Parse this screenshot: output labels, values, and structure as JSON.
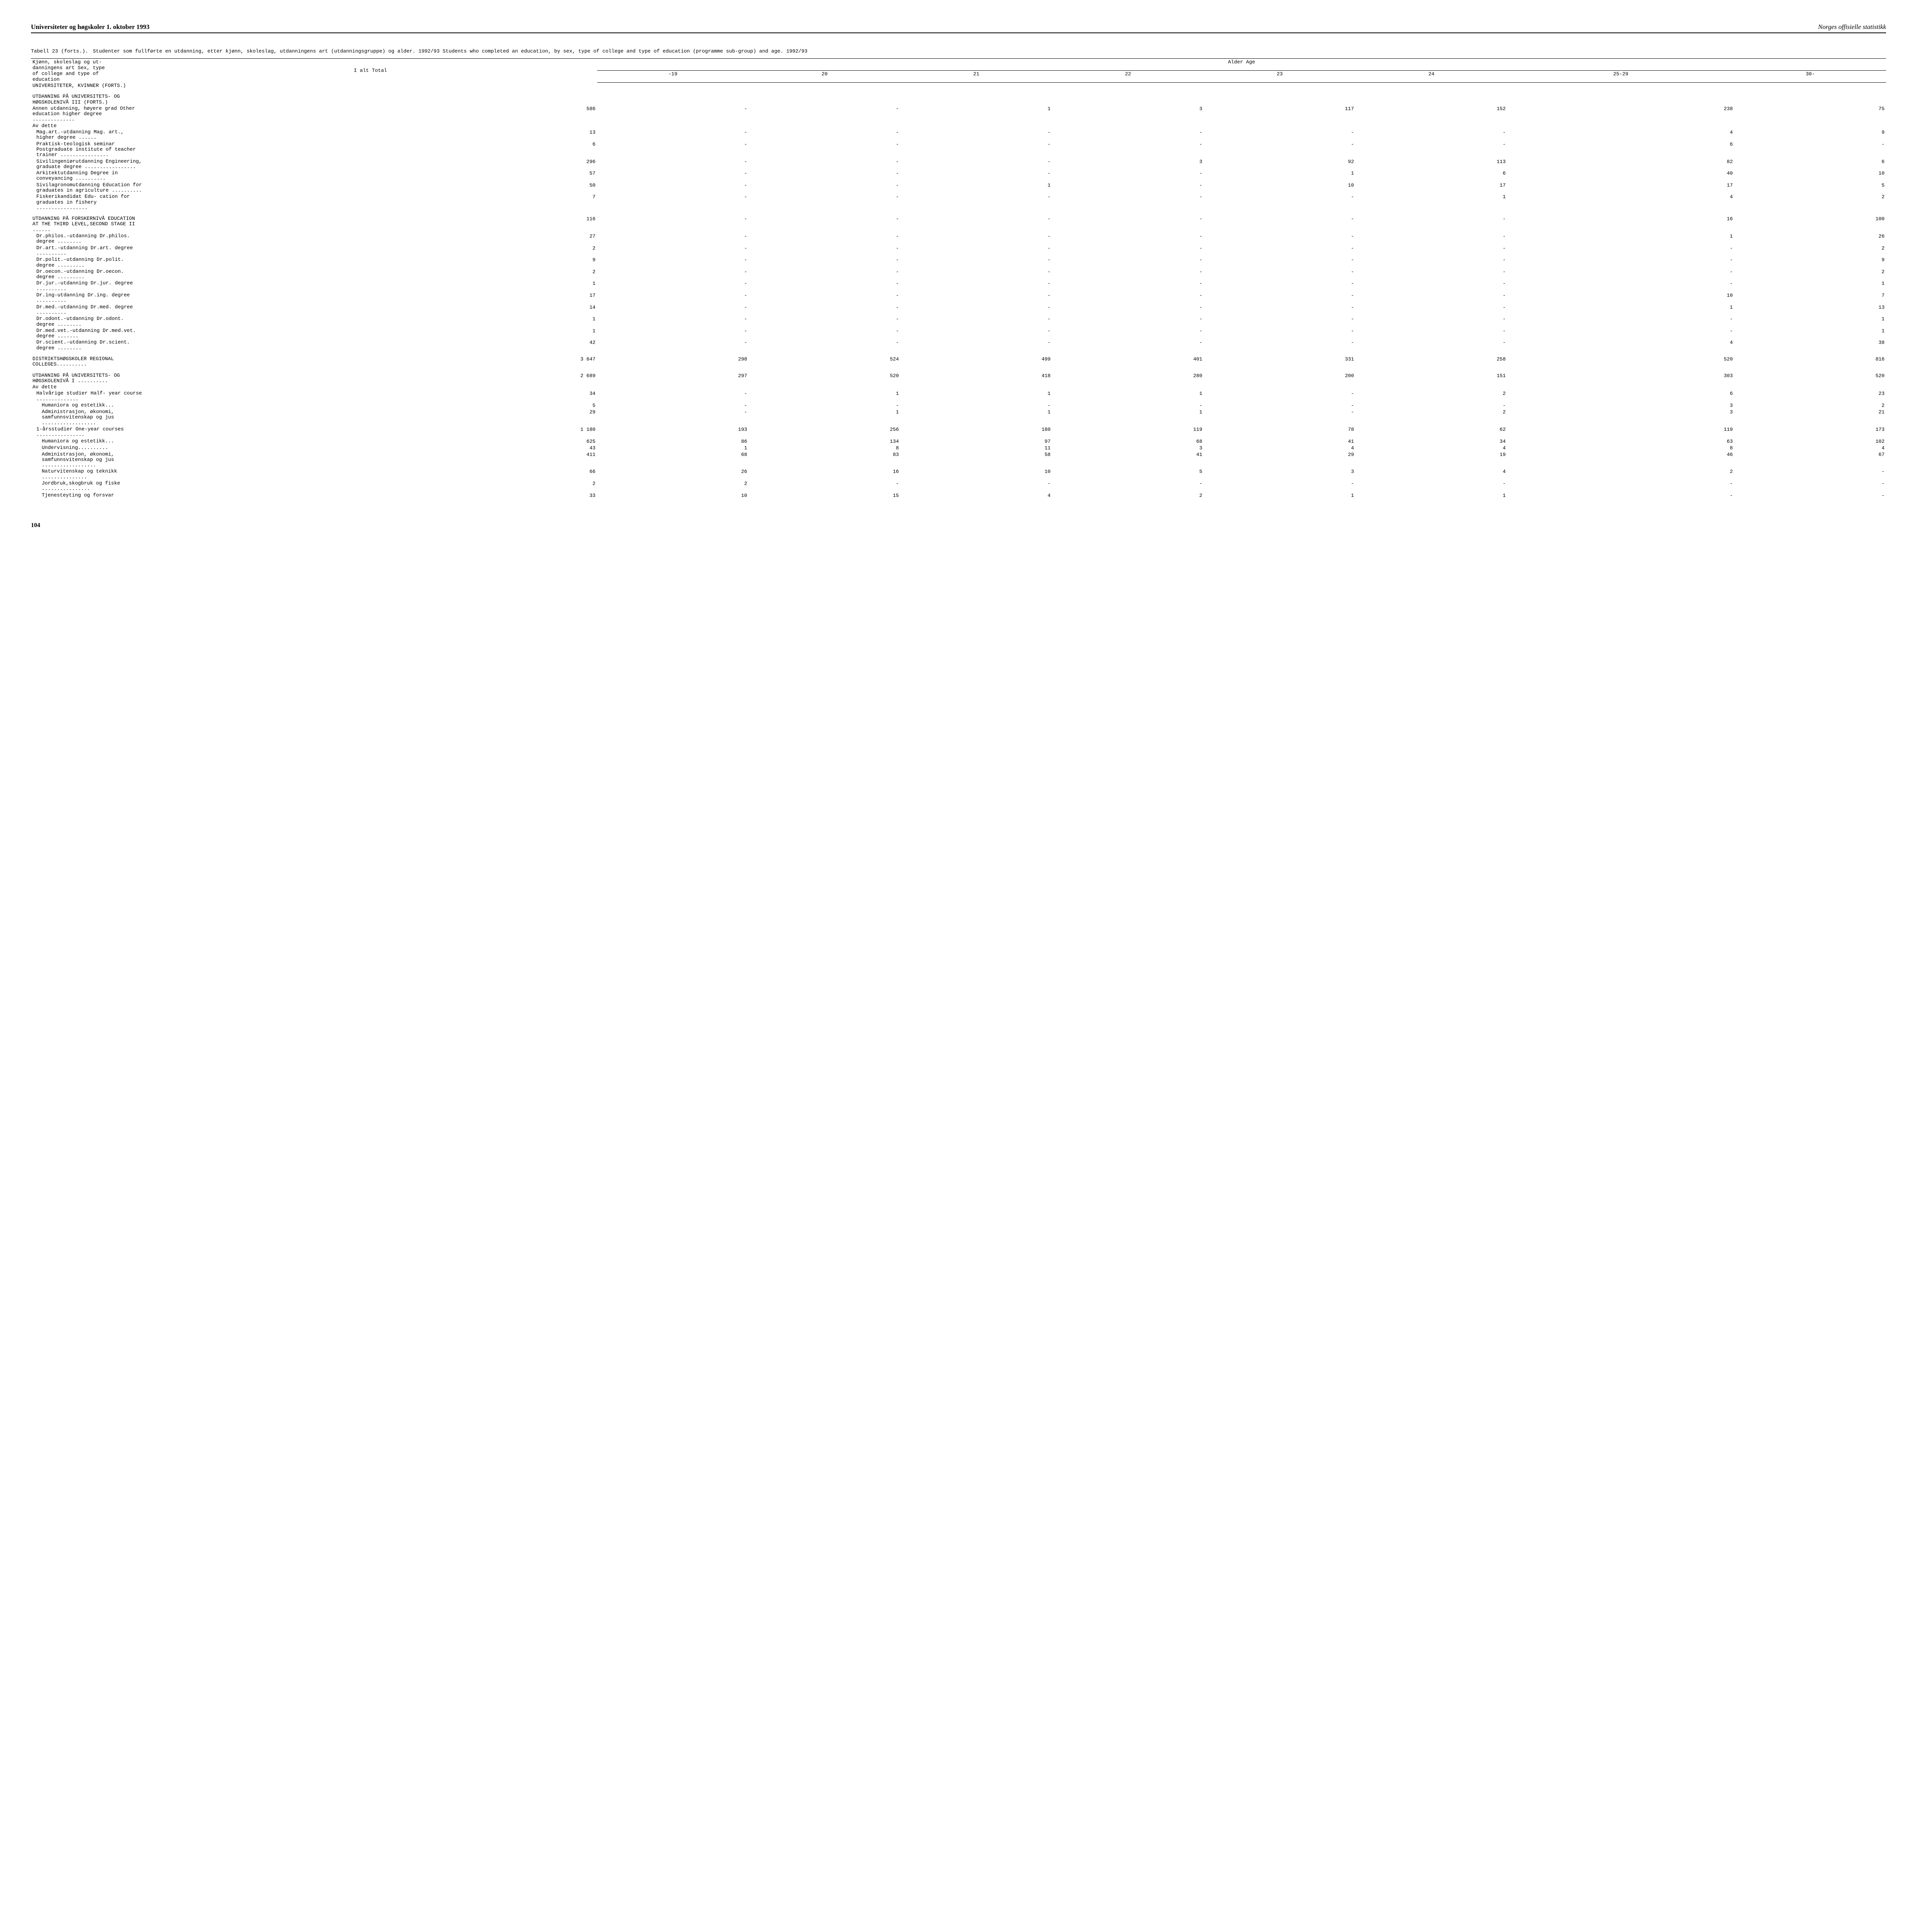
{
  "header": {
    "left": "Universiteter og høgskoler 1. oktober 1993",
    "right": "Norges offisielle statistikk"
  },
  "table": {
    "title_label": "Tabell 23 (forts.).",
    "title_text": "Studenter som fullførte en utdanning, etter kjønn, skoleslag, utdanningens art (utdanningsgruppe) og alder. 1992/93  Students who completed an education, by sex, type of college and type of education (programme sub-group) and age. 1992/93",
    "stub_lines": [
      "Kjønn, skoleslag og ut-",
      "danningens art  Sex, type",
      "of college and type of",
      "education"
    ],
    "total_label": "I alt Total",
    "age_label": "Alder  Age",
    "age_cols": [
      "-19",
      "20",
      "21",
      "22",
      "23",
      "24",
      "25-29",
      "30-"
    ]
  },
  "rows": [
    {
      "label": "UNIVERSITETER, KVINNER (FORTS.)",
      "indent": 0,
      "vals": [
        null,
        null,
        null,
        null,
        null,
        null,
        null,
        null,
        null
      ]
    },
    {
      "gap": true
    },
    {
      "label": "UTDANNING PÅ UNIVERSITETS- OG HØGSKOLENIVÅ III (FORTS.)",
      "indent": 0,
      "vals": [
        null,
        null,
        null,
        null,
        null,
        null,
        null,
        null,
        null
      ]
    },
    {
      "label": "Annen utdanning, høyere grad  Other education higher degree ..............",
      "indent": 0,
      "vals": [
        "586",
        "-",
        "-",
        "1",
        "3",
        "117",
        "152",
        "238",
        "75"
      ]
    },
    {
      "label": "Av dette",
      "indent": 0,
      "vals": [
        null,
        null,
        null,
        null,
        null,
        null,
        null,
        null,
        null
      ]
    },
    {
      "label": "Mag.art.-utdanning  Mag. art., higher degree ......",
      "indent": 1,
      "vals": [
        "13",
        "-",
        "-",
        "-",
        "-",
        "-",
        "-",
        "4",
        "9"
      ]
    },
    {
      "label": "Praktisk-teologisk seminar  Postgraduate institute of teacher trainer ................",
      "indent": 1,
      "vals": [
        "6",
        "-",
        "-",
        "-",
        "-",
        "-",
        "-",
        "6",
        "-"
      ]
    },
    {
      "label": "Sivilingeniørutdanning Engineering, graduate degree .................",
      "indent": 1,
      "vals": [
        "296",
        "-",
        "-",
        "-",
        "3",
        "92",
        "113",
        "82",
        "6"
      ]
    },
    {
      "label": "Arkitektutdanning  Degree in conveyancing ..........",
      "indent": 1,
      "vals": [
        "57",
        "-",
        "-",
        "-",
        "-",
        "1",
        "6",
        "40",
        "10"
      ]
    },
    {
      "label": "Sivilagronomutdanning Education for graduates in agriculture ..........",
      "indent": 1,
      "vals": [
        "50",
        "-",
        "-",
        "1",
        "-",
        "10",
        "17",
        "17",
        "5"
      ]
    },
    {
      "label": "Fiskerikandidat  Edu- cation for graduates in fishery .................",
      "indent": 1,
      "vals": [
        "7",
        "-",
        "-",
        "-",
        "-",
        "-",
        "1",
        "4",
        "2"
      ]
    },
    {
      "gap": true
    },
    {
      "label": "UTDANNING PÅ FORSKERNIVÅ EDUCATION AT THE THIRD LEVEL,SECOND STAGE II ......",
      "indent": 0,
      "vals": [
        "116",
        "-",
        "-",
        "-",
        "-",
        "-",
        "-",
        "16",
        "100"
      ]
    },
    {
      "label": "Dr.philos.-utdanning Dr.philos. degree ........",
      "indent": 1,
      "vals": [
        "27",
        "-",
        "-",
        "-",
        "-",
        "-",
        "-",
        "1",
        "26"
      ]
    },
    {
      "label": "Dr.art.-utdanning Dr.art. degree ..........",
      "indent": 1,
      "vals": [
        "2",
        "-",
        "-",
        "-",
        "-",
        "-",
        "-",
        "-",
        "2"
      ]
    },
    {
      "label": "Dr.polit.-utdanning Dr.polit. degree .........",
      "indent": 1,
      "vals": [
        "9",
        "-",
        "-",
        "-",
        "-",
        "-",
        "-",
        "-",
        "9"
      ]
    },
    {
      "label": "Dr.oecon.-utdanning Dr.oecon. degree .........",
      "indent": 1,
      "vals": [
        "2",
        "-",
        "-",
        "-",
        "-",
        "-",
        "-",
        "-",
        "2"
      ]
    },
    {
      "label": "Dr.jur.-utdanning Dr.jur. degree ..........",
      "indent": 1,
      "vals": [
        "1",
        "-",
        "-",
        "-",
        "-",
        "-",
        "-",
        "-",
        "1"
      ]
    },
    {
      "label": "Dr.ing-utdanning Dr.ing. degree ..........",
      "indent": 1,
      "vals": [
        "17",
        "-",
        "-",
        "-",
        "-",
        "-",
        "-",
        "10",
        "7"
      ]
    },
    {
      "label": "Dr.med.-utdanning Dr.med. degree ..........",
      "indent": 1,
      "vals": [
        "14",
        "-",
        "-",
        "-",
        "-",
        "-",
        "-",
        "1",
        "13"
      ]
    },
    {
      "label": "Dr.odont.-utdanning Dr.odont. degree ........",
      "indent": 1,
      "vals": [
        "1",
        "-",
        "-",
        "-",
        "-",
        "-",
        "-",
        "-",
        "1"
      ]
    },
    {
      "label": "Dr.med.vet.-utdanning Dr.med.vet. degree .......",
      "indent": 1,
      "vals": [
        "1",
        "-",
        "-",
        "-",
        "-",
        "-",
        "-",
        "-",
        "1"
      ]
    },
    {
      "label": "Dr.scient.-utdanning Dr.scient. degree ........",
      "indent": 1,
      "vals": [
        "42",
        "-",
        "-",
        "-",
        "-",
        "-",
        "-",
        "4",
        "38"
      ]
    },
    {
      "gap": true
    },
    {
      "label": "DISTRIKTSHØGSKOLER REGIONAL COLLEGES..........",
      "indent": 0,
      "vals": [
        "3 647",
        "298",
        "524",
        "499",
        "401",
        "331",
        "258",
        "520",
        "816"
      ]
    },
    {
      "gap": true
    },
    {
      "label": "UTDANNING PÅ UNIVERSITETS- OG HØGSKOLENIVÅ I ..........",
      "indent": 0,
      "vals": [
        "2 689",
        "297",
        "520",
        "418",
        "280",
        "200",
        "151",
        "303",
        "520"
      ]
    },
    {
      "label": "Av dette",
      "indent": 0,
      "vals": [
        null,
        null,
        null,
        null,
        null,
        null,
        null,
        null,
        null
      ]
    },
    {
      "label": "Halvårige studier  Half- year course ..............",
      "indent": 1,
      "vals": [
        "34",
        "-",
        "1",
        "1",
        "1",
        "-",
        "2",
        "6",
        "23"
      ]
    },
    {
      "label": "Humaniora og estetikk...",
      "indent": 2,
      "vals": [
        "5",
        "-",
        "-",
        "-",
        "-",
        "-",
        "-",
        "3",
        "2"
      ]
    },
    {
      "label": "Administrasjon, økonomi, samfunnsvitenskap og jus ..................",
      "indent": 2,
      "vals": [
        "29",
        "-",
        "1",
        "1",
        "1",
        "-",
        "2",
        "3",
        "21"
      ]
    },
    {
      "label": "1-årsstudier  One-year courses ................",
      "indent": 1,
      "vals": [
        "1 180",
        "193",
        "256",
        "180",
        "119",
        "78",
        "62",
        "119",
        "173"
      ]
    },
    {
      "label": "Humaniora og estetikk...",
      "indent": 2,
      "vals": [
        "625",
        "86",
        "134",
        "97",
        "68",
        "41",
        "34",
        "63",
        "102"
      ]
    },
    {
      "label": "Undervisning..........",
      "indent": 2,
      "vals": [
        "43",
        "1",
        "8",
        "11",
        "3",
        "4",
        "4",
        "8",
        "4"
      ]
    },
    {
      "label": "Administrasjon, økonomi, samfunnsvitenskap og jus ..................",
      "indent": 2,
      "vals": [
        "411",
        "68",
        "83",
        "58",
        "41",
        "29",
        "19",
        "46",
        "67"
      ]
    },
    {
      "label": "Naturvitenskap og teknikk ...............",
      "indent": 2,
      "vals": [
        "66",
        "26",
        "16",
        "10",
        "5",
        "3",
        "4",
        "2",
        "-"
      ]
    },
    {
      "label": "Jordbruk,skogbruk og fiske ................",
      "indent": 2,
      "vals": [
        "2",
        "2",
        "-",
        "-",
        "-",
        "-",
        "-",
        "-",
        "-"
      ]
    },
    {
      "label": "Tjenesteyting og forsvar",
      "indent": 2,
      "vals": [
        "33",
        "10",
        "15",
        "4",
        "2",
        "1",
        "1",
        "-",
        "-"
      ]
    }
  ],
  "page_number": "104"
}
